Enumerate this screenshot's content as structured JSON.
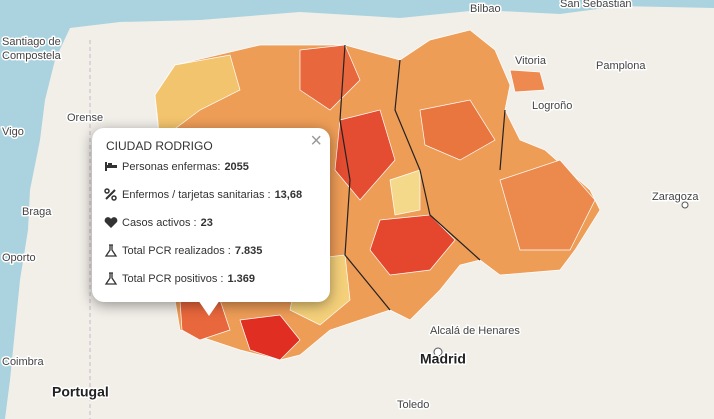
{
  "map_labels": [
    "Bilbao",
    "San Sebastián",
    "Santiago de",
    "Compostela",
    "Vitoria",
    "Pamplona",
    "Orense",
    "Logroño",
    "Vigo",
    "Braga",
    "Zaragoza",
    "Oporto",
    "Coimbra",
    "Portugal",
    "Alcalá de Henares",
    "Madrid",
    "Toledo"
  ],
  "popup": {
    "title": "CIUDAD RODRIGO",
    "close": "×",
    "rows": [
      {
        "label": "Personas enfermas:",
        "value": "2055"
      },
      {
        "label": "Enfermos / tarjetas sanitarias :",
        "value": "13,68"
      },
      {
        "label": "Casos activos :",
        "value": "23"
      },
      {
        "label": "Total PCR realizados :",
        "value": "7.835"
      },
      {
        "label": "Total PCR positivos :",
        "value": "1.369"
      }
    ]
  }
}
